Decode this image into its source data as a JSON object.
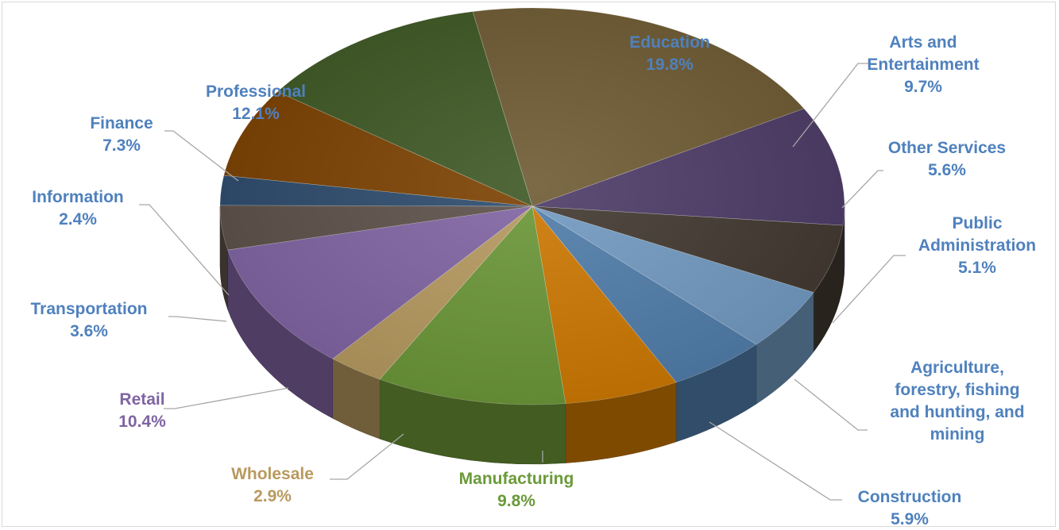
{
  "chart_data": {
    "type": "pie",
    "title": "",
    "style": "3d-exploded-perspective",
    "legend": "none",
    "slices": [
      {
        "label": "Education",
        "value": 19.8,
        "value_label": "19.8%",
        "color": "#6e5a33",
        "label_color": "#4f81bd"
      },
      {
        "label": "Arts and Entertainment",
        "value": 9.7,
        "value_label": "9.7%",
        "color": "#4c3a66",
        "label_color": "#4f81bd"
      },
      {
        "label": "Other Services",
        "value": 5.6,
        "value_label": "5.6%",
        "color": "#41382f",
        "label_color": "#4f81bd"
      },
      {
        "label": "Public Administration",
        "value": 5.1,
        "value_label": "5.1%",
        "color": "#7099c0",
        "label_color": "#4f81bd"
      },
      {
        "label": "Agriculture, forestry, fishing and hunting, and mining",
        "value": 5.1,
        "value_label": "",
        "color": "#4f7ca9",
        "label_color": "#4f81bd"
      },
      {
        "label": "Construction",
        "value": 5.9,
        "value_label": "5.9%",
        "color": "#cc7700",
        "label_color": "#4f81bd"
      },
      {
        "label": "Manufacturing",
        "value": 9.8,
        "value_label": "9.8%",
        "color": "#6a9536",
        "label_color": "#6a9a38"
      },
      {
        "label": "Wholesale",
        "value": 2.9,
        "value_label": "2.9%",
        "color": "#b4985e",
        "label_color": "#b8995f"
      },
      {
        "label": "Retail",
        "value": 10.4,
        "value_label": "10.4%",
        "color": "#7f63a1",
        "label_color": "#7f64a2"
      },
      {
        "label": "Transportation",
        "value": 3.6,
        "value_label": "3.6%",
        "color": "#5c5048",
        "label_color": "#4f81bd"
      },
      {
        "label": "Information",
        "value": 2.4,
        "value_label": "2.4%",
        "color": "#2b4a6b",
        "label_color": "#4f81bd"
      },
      {
        "label": "Finance",
        "value": 7.3,
        "value_label": "7.3%",
        "color": "#7a4000",
        "label_color": "#4f81bd"
      },
      {
        "label": "Professional",
        "value": 12.1,
        "value_label": "12.1%",
        "color": "#3d5723",
        "label_color": "#4f81bd"
      }
    ],
    "labels": [
      {
        "slice": "Education",
        "lines": [
          "Education",
          "19.8%"
        ]
      },
      {
        "slice": "Arts and Entertainment",
        "lines": [
          "Arts and",
          "Entertainment",
          "9.7%"
        ]
      },
      {
        "slice": "Other Services",
        "lines": [
          "Other Services",
          "5.6%"
        ]
      },
      {
        "slice": "Public Administration",
        "lines": [
          "Public",
          "Administration",
          "5.1%"
        ]
      },
      {
        "slice": "Agriculture, forestry, fishing and hunting, and mining",
        "lines": [
          "Agriculture,",
          "forestry, fishing",
          "and hunting, and",
          "mining"
        ]
      },
      {
        "slice": "Construction",
        "lines": [
          "Construction",
          "5.9%"
        ]
      },
      {
        "slice": "Manufacturing",
        "lines": [
          "Manufacturing",
          "9.8%"
        ]
      },
      {
        "slice": "Wholesale",
        "lines": [
          "Wholesale",
          "2.9%"
        ]
      },
      {
        "slice": "Retail",
        "lines": [
          "Retail",
          "10.4%"
        ]
      },
      {
        "slice": "Transportation",
        "lines": [
          "Transportation",
          "3.6%"
        ]
      },
      {
        "slice": "Information",
        "lines": [
          "Information",
          "2.4%"
        ]
      },
      {
        "slice": "Finance",
        "lines": [
          "Finance",
          "7.3%"
        ]
      },
      {
        "slice": "Professional",
        "lines": [
          "Professional",
          "12.1%"
        ]
      }
    ]
  }
}
